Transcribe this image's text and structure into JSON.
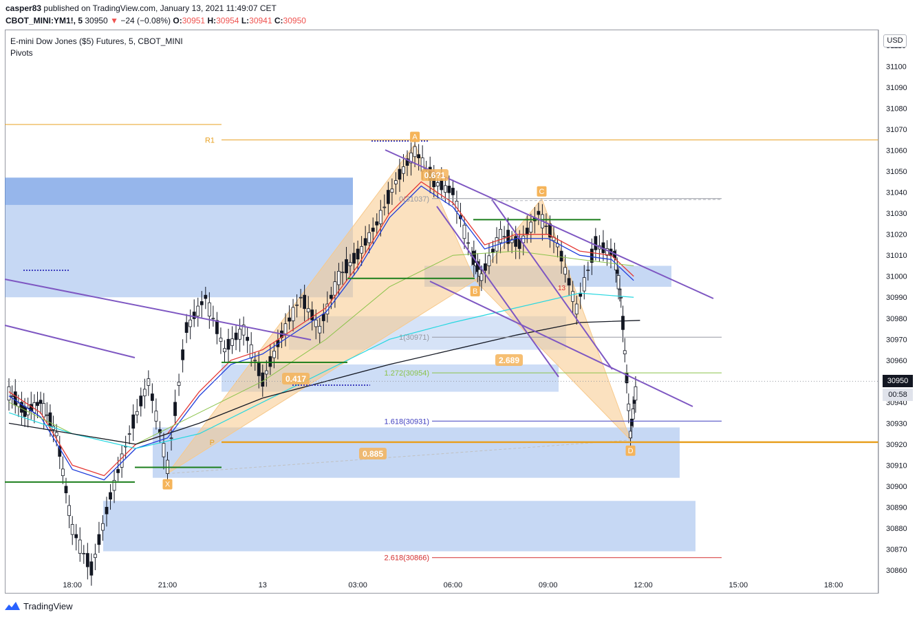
{
  "header": {
    "user": "casper83",
    "published_text": "published on TradingView.com, January 13, 2021 11:49:07 CET"
  },
  "ticker": {
    "symbol": "CBOT_MINI:YM1!, 5",
    "last": "30950",
    "arrow": "▼",
    "change": "−24 (−0.08%)",
    "o_label": "O:",
    "o": "30951",
    "h_label": "H:",
    "h": "30954",
    "l_label": "L:",
    "l": "30941",
    "c_label": "C:",
    "c": "30950"
  },
  "legend": {
    "title": "E-mini Dow Jones ($5) Futures, 5, CBOT_MINI",
    "indicator": "Pivots"
  },
  "price_axis": {
    "currency": "USD",
    "last_price_tag": "30950",
    "countdown": "00:58"
  },
  "footer": {
    "brand": "TradingView"
  },
  "colors": {
    "harmonic_fill": "#f7c98b",
    "zone_fill": "#5b8fe0",
    "trendline": "#7e57c2",
    "support_line": "#1b7e1b",
    "pivot_line": "#e8a020",
    "ema_red": "#e53935",
    "ema_blue": "#1e3ddb",
    "sma_cyan": "#26d7e0",
    "sma_green": "#8bc34a",
    "sma_black": "#131722"
  },
  "chart_data": {
    "type": "line",
    "y_ticks": [
      30860,
      30870,
      30880,
      30890,
      30900,
      30910,
      30920,
      30930,
      30940,
      30950,
      30960,
      30970,
      30980,
      30990,
      31000,
      31010,
      31020,
      31030,
      31040,
      31050,
      31060,
      31070,
      31080,
      31090,
      31100,
      31110
    ],
    "x_ticks": [
      "18:00",
      "21:00",
      "13",
      "03:00",
      "06:00",
      "09:00",
      "12:00",
      "15:00",
      "18:00"
    ],
    "pattern_points": [
      {
        "label": "X",
        "time_hours": 21.0,
        "price": 30906
      },
      {
        "label": "A",
        "time_hours": 28.8,
        "price": 31063
      },
      {
        "label": "B",
        "time_hours": 30.7,
        "price": 30998
      },
      {
        "label": "C",
        "time_hours": 32.8,
        "price": 31037
      },
      {
        "label": "D",
        "time_hours": 35.6,
        "price": 30922
      }
    ],
    "pattern_ratios": [
      "0.417",
      "0.885",
      "2.689",
      "0.6?1"
    ],
    "fib_levels": [
      {
        "label": "0(31037)",
        "price": 31037
      },
      {
        "label": "1(30971)",
        "price": 30971
      },
      {
        "label": "1.272(30954)",
        "price": 30954
      },
      {
        "label": "1.618(30931)",
        "price": 30931
      },
      {
        "label": "2.618(30866)",
        "price": 30866
      }
    ],
    "pivots": [
      {
        "label": "R1",
        "price": 31065
      },
      {
        "label": "P",
        "price": 30921
      }
    ],
    "last_price": 30950,
    "marker_text": "13"
  }
}
